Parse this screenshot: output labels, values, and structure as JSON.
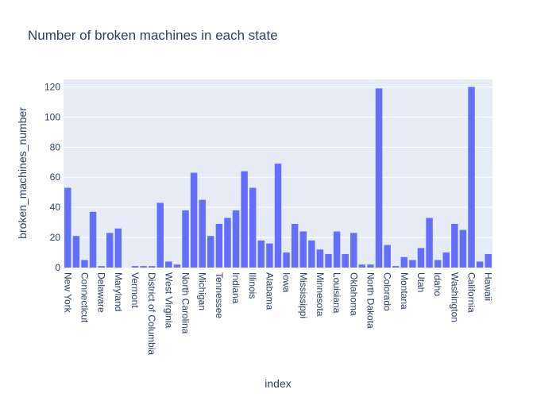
{
  "chart_data": {
    "type": "bar",
    "title": "Number of broken machines in each state",
    "xlabel": "index",
    "ylabel": "broken_machines_number",
    "ylim": [
      0,
      125
    ],
    "yticks": [
      0,
      20,
      40,
      60,
      80,
      100,
      120
    ],
    "grid": true,
    "legend": "none",
    "colors": {
      "bar": "#636efa",
      "plot_bg": "#e5ecf6",
      "grid": "#ffffff",
      "text": "#2a3f5f"
    },
    "categories": [
      "New York",
      "",
      "Connecticut",
      "",
      "Delaware",
      "",
      "Maryland",
      "",
      "Vermont",
      "",
      "District of Columbia",
      "",
      "West Virginia",
      "",
      "North Carolina",
      "",
      "Michigan",
      "",
      "Tennessee",
      "",
      "Indiana",
      "",
      "Illinois",
      "",
      "Alabama",
      "",
      "Iowa",
      "",
      "Mississippi",
      "",
      "Minnesota",
      "",
      "Louisiana",
      "",
      "Oklahoma",
      "",
      "North Dakota",
      "",
      "Colorado",
      "",
      "Montana",
      "",
      "Utah",
      "",
      "Idaho",
      "",
      "Washington",
      "",
      "California",
      "",
      "Hawaii"
    ],
    "values": [
      53,
      21,
      5,
      37,
      1,
      23,
      26,
      0,
      1,
      1,
      1,
      43,
      4,
      2,
      38,
      63,
      45,
      21,
      29,
      33,
      38,
      64,
      53,
      18,
      16,
      69,
      10,
      29,
      24,
      18,
      12,
      9,
      24,
      9,
      23,
      2,
      2,
      119,
      15,
      1,
      7,
      5,
      13,
      33,
      5,
      10,
      29,
      25,
      120,
      4,
      9
    ]
  }
}
